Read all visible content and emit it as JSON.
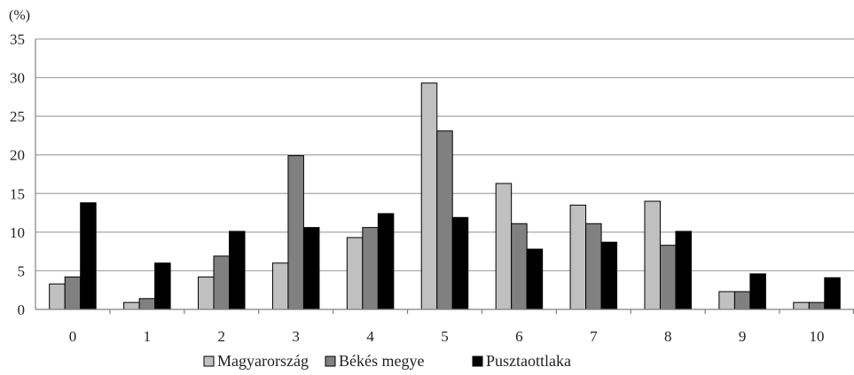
{
  "chart_data": {
    "type": "bar",
    "title": "",
    "xlabel": "",
    "ylabel": "",
    "unit_label": "(%)",
    "categories": [
      "0",
      "1",
      "2",
      "3",
      "4",
      "5",
      "6",
      "7",
      "8",
      "9",
      "10"
    ],
    "series": [
      {
        "name": "Magyarország",
        "color": "#c0c0c0",
        "values": [
          3.3,
          0.9,
          4.2,
          6.0,
          9.3,
          29.3,
          16.3,
          13.5,
          14.0,
          2.3,
          0.9
        ]
      },
      {
        "name": "Békés megye",
        "color": "#808080",
        "values": [
          4.2,
          1.4,
          6.9,
          19.9,
          10.6,
          23.1,
          11.1,
          11.1,
          8.3,
          2.3,
          0.9
        ]
      },
      {
        "name": "Pusztaottlaka",
        "color": "#000000",
        "values": [
          13.8,
          6.0,
          10.1,
          10.6,
          12.4,
          11.9,
          7.8,
          8.7,
          10.1,
          4.6,
          4.1
        ]
      }
    ],
    "ylim": [
      0,
      35
    ],
    "yticks": [
      0,
      5,
      10,
      15,
      20,
      25,
      30,
      35
    ],
    "grid": true,
    "legend_position": "bottom"
  }
}
